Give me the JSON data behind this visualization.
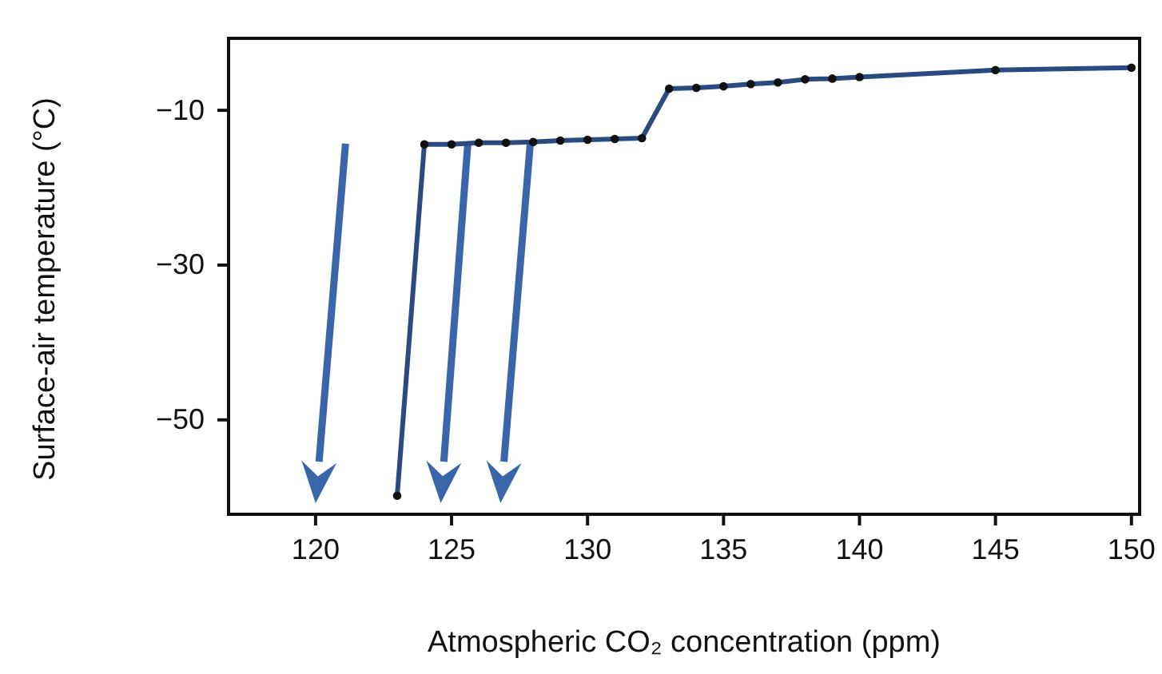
{
  "chart_data": {
    "type": "line",
    "xlabel": "Atmospheric CO₂ concentration (ppm)",
    "ylabel": "Surface-air temperature (°C)",
    "x": [
      123,
      124,
      125,
      126,
      127,
      128,
      129,
      130,
      131,
      132,
      133,
      134,
      135,
      136,
      137,
      138,
      139,
      140,
      145,
      150
    ],
    "series": [
      {
        "color": "#2b4b80",
        "values": [
          -59.8,
          -14.4,
          -14.4,
          -14.2,
          -14.2,
          -14.1,
          -13.9,
          -13.8,
          -13.7,
          -13.6,
          -7.2,
          -7.1,
          -6.9,
          -6.6,
          -6.4,
          -6.0,
          -5.9,
          -5.7,
          -4.8,
          -4.5
        ]
      }
    ],
    "xlim": [
      116.8,
      150.3
    ],
    "xticks": [
      120,
      125,
      130,
      135,
      140,
      145,
      150
    ],
    "ylim": [
      -62.2,
      -0.7
    ],
    "yticks": [
      -10,
      -30,
      -50
    ],
    "marker": "circle",
    "line_style": "solid"
  }
}
